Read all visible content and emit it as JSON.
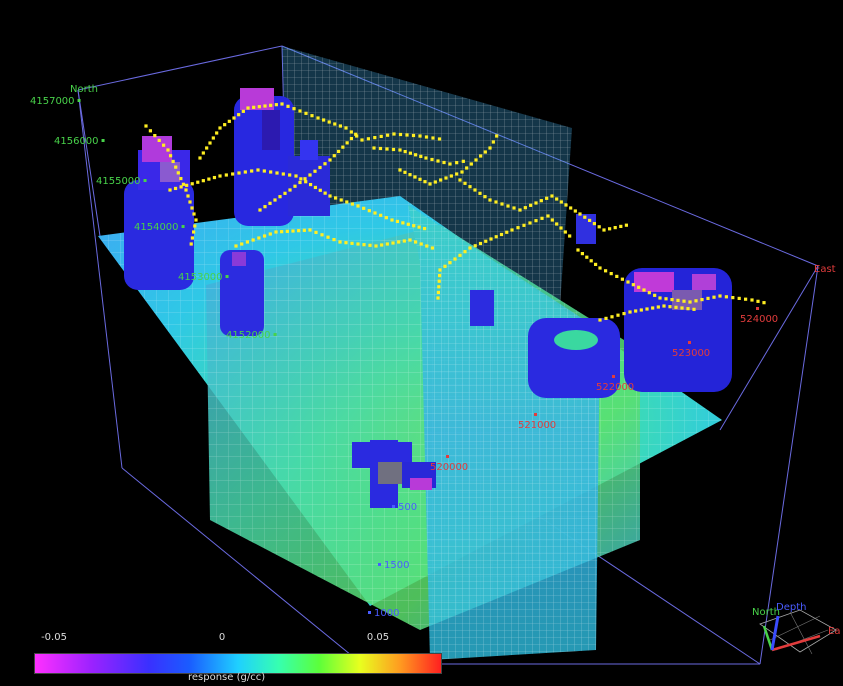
{
  "axes": {
    "north_label": "North",
    "east_label": "East",
    "north_ticks": [
      "4157000",
      "4156000",
      "4155000",
      "4154000",
      "4153000",
      "4152000"
    ],
    "east_ticks": [
      "520000",
      "521000",
      "522000",
      "523000",
      "524000"
    ],
    "depth_ticks": [
      "500",
      "1500",
      "1000"
    ]
  },
  "colorbar": {
    "title": "response (g/cc)",
    "ticks": [
      "-0.05",
      "0",
      "0.05"
    ],
    "colors": [
      "#ff30ff",
      "#3a30ff",
      "#1fd0ff",
      "#5cff3a",
      "#e8ff1f",
      "#ff2020"
    ]
  },
  "orientation_widget": {
    "north": "North",
    "depth": "Depth",
    "east": "Ea"
  },
  "colors": {
    "north_axis": "#48d24a",
    "east_axis": "#e23c3c",
    "depth_axis": "#4a5cff",
    "box_edge": "#6a6ae0",
    "survey_points": "#ffee22"
  }
}
